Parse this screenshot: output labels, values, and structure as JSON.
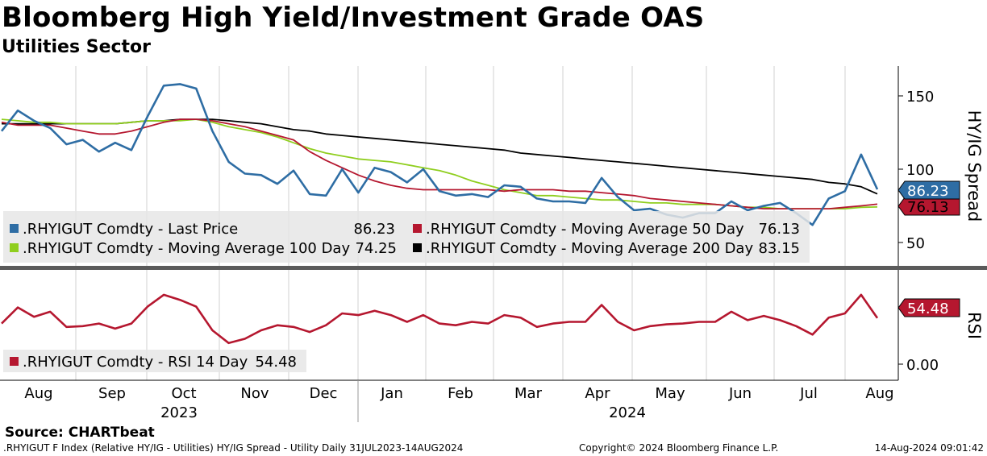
{
  "header": {
    "title": "Bloomberg High Yield/Investment Grade OAS",
    "subtitle": "Utilities Sector"
  },
  "footer": {
    "source": "Source: CHARTbeat",
    "description": ".RHYIGUT F Index (Relative HY/IG - Utilities) HY/IG Spread - Utility  Daily 31JUL2023-14AUG2024",
    "copyright": "Copyright© 2024 Bloomberg Finance L.P.",
    "timestamp": "14-Aug-2024 09:01:42"
  },
  "colors": {
    "last_price": "#2e6da4",
    "ma50": "#b5172f",
    "ma100": "#8fce1e",
    "ma200": "#000000",
    "rsi": "#b5172f"
  },
  "chart_data": [
    {
      "type": "line",
      "panel": "upper",
      "ylabel": "HY/IG Spread",
      "ylim": [
        40,
        165
      ],
      "yticks": [
        "150",
        "100",
        "50"
      ],
      "x_months": [
        "Aug",
        "Sep",
        "Oct",
        "Nov",
        "Dec",
        "Jan",
        "Feb",
        "Mar",
        "Apr",
        "May",
        "Jun",
        "Jul",
        "Aug"
      ],
      "x_years": [
        "2023",
        "2024"
      ],
      "x": [
        "2023-07-31",
        "2023-08-07",
        "2023-08-14",
        "2023-08-21",
        "2023-08-28",
        "2023-09-04",
        "2023-09-11",
        "2023-09-18",
        "2023-09-25",
        "2023-10-02",
        "2023-10-09",
        "2023-10-16",
        "2023-10-23",
        "2023-10-30",
        "2023-11-06",
        "2023-11-13",
        "2023-11-20",
        "2023-11-27",
        "2023-12-04",
        "2023-12-11",
        "2023-12-18",
        "2023-12-25",
        "2024-01-01",
        "2024-01-08",
        "2024-01-15",
        "2024-01-22",
        "2024-01-29",
        "2024-02-05",
        "2024-02-12",
        "2024-02-19",
        "2024-02-26",
        "2024-03-04",
        "2024-03-11",
        "2024-03-18",
        "2024-03-25",
        "2024-04-01",
        "2024-04-08",
        "2024-04-15",
        "2024-04-22",
        "2024-04-29",
        "2024-05-06",
        "2024-05-13",
        "2024-05-20",
        "2024-05-27",
        "2024-06-03",
        "2024-06-10",
        "2024-06-17",
        "2024-06-24",
        "2024-07-01",
        "2024-07-08",
        "2024-07-15",
        "2024-07-22",
        "2024-07-29",
        "2024-08-05",
        "2024-08-14"
      ],
      "series": [
        {
          "name": ".RHYIGUT Comdty - Last Price",
          "legend_value": "86.23",
          "values": [
            126,
            140,
            133,
            128,
            117,
            120,
            112,
            118,
            113,
            136,
            157,
            158,
            155,
            126,
            105,
            97,
            96,
            90,
            99,
            83,
            82,
            100,
            84,
            101,
            98,
            91,
            100,
            85,
            82,
            83,
            81,
            89,
            88,
            80,
            78,
            78,
            77,
            94,
            81,
            72,
            73,
            69,
            67,
            70,
            70,
            78,
            72,
            75,
            77,
            70,
            62,
            80,
            85,
            110,
            86.23
          ]
        },
        {
          "name": ".RHYIGUT Comdty - Moving Average 50 Day",
          "legend_value": "76.13",
          "values": [
            132,
            130,
            130,
            130,
            128,
            126,
            124,
            124,
            126,
            129,
            132,
            134,
            134,
            133,
            131,
            129,
            126,
            123,
            120,
            112,
            106,
            101,
            96,
            92,
            89,
            87,
            86,
            86,
            86,
            86,
            86,
            85,
            86,
            86,
            86,
            85,
            85,
            84,
            83,
            82,
            80,
            79,
            78,
            77,
            76,
            75,
            74,
            73,
            73,
            73,
            73,
            73,
            74,
            75,
            76.13
          ]
        },
        {
          "name": ".RHYIGUT Comdty - Moving Average 100 Day",
          "legend_value": "74.25",
          "values": [
            134,
            133,
            132,
            132,
            131,
            131,
            131,
            131,
            132,
            133,
            133,
            133,
            134,
            132,
            129,
            127,
            125,
            122,
            118,
            114,
            111,
            109,
            107,
            106,
            105,
            103,
            101,
            99,
            96,
            92,
            89,
            86,
            84,
            82,
            82,
            81,
            80,
            79,
            79,
            78,
            77,
            77,
            76,
            76,
            76,
            75,
            74,
            74,
            73,
            73,
            73,
            73,
            73,
            74,
            74.25
          ]
        },
        {
          "name": ".RHYIGUT Comdty - Moving Average 200 Day",
          "legend_value": "83.15",
          "values": [
            131,
            131,
            131,
            131,
            131,
            131,
            131,
            131,
            132,
            133,
            133,
            134,
            134,
            134,
            133,
            132,
            131,
            129,
            127,
            126,
            124,
            123,
            122,
            121,
            120,
            119,
            118,
            117,
            116,
            115,
            114,
            113,
            111,
            110,
            109,
            108,
            107,
            106,
            105,
            104,
            103,
            102,
            101,
            100,
            99,
            98,
            97,
            96,
            95,
            94,
            93,
            91,
            90,
            88,
            83.15
          ]
        }
      ],
      "value_badges": [
        "86.23",
        "76.13"
      ]
    },
    {
      "type": "line",
      "panel": "lower",
      "ylabel": "RSI",
      "ylim": [
        -5,
        112
      ],
      "yticks": [
        "0.00"
      ],
      "series": [
        {
          "name": ".RHYIGUT Comdty - RSI 14 Day",
          "legend_value": "54.48",
          "values": [
            48,
            67,
            56,
            62,
            44,
            45,
            48,
            42,
            48,
            68,
            82,
            76,
            68,
            40,
            25,
            30,
            40,
            46,
            44,
            38,
            46,
            60,
            58,
            63,
            58,
            50,
            58,
            48,
            46,
            50,
            48,
            58,
            55,
            44,
            48,
            50,
            50,
            70,
            50,
            40,
            45,
            47,
            48,
            50,
            50,
            62,
            52,
            57,
            52,
            45,
            35,
            55,
            60,
            82,
            54.48
          ]
        }
      ],
      "value_badges": [
        "54.48"
      ]
    }
  ]
}
